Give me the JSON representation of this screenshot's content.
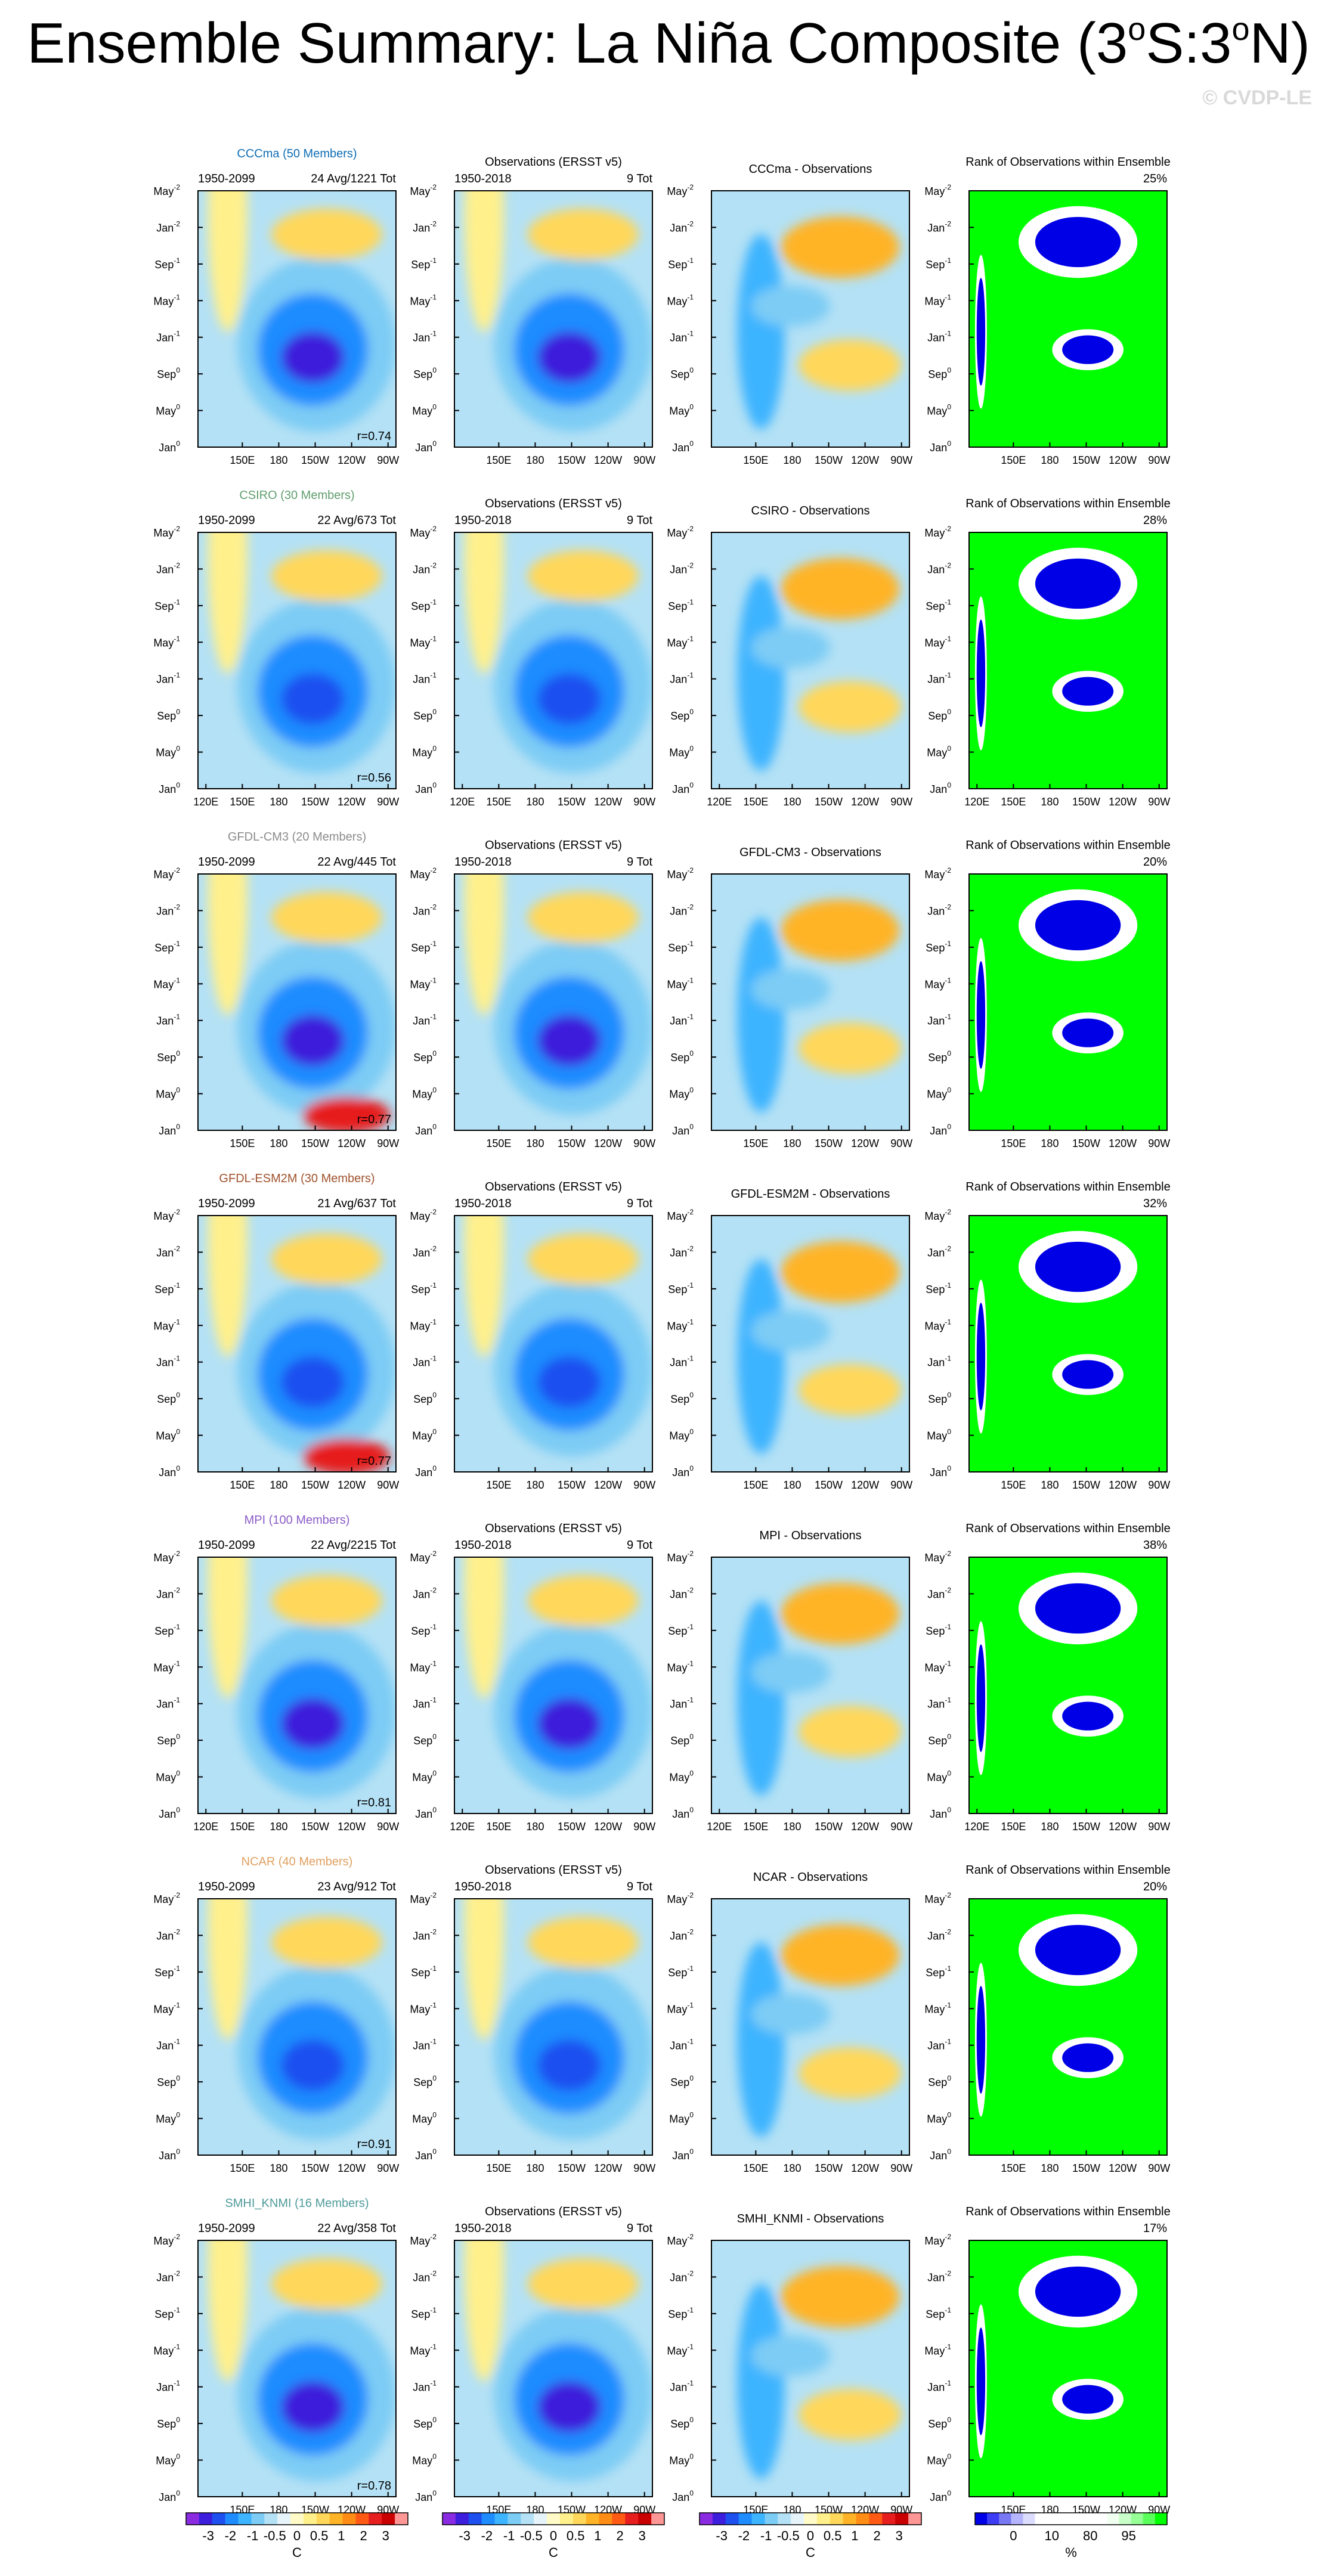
{
  "title": "Ensemble Summary: La Niña Composite (3°S:3°N)",
  "title_parts": {
    "pre": "Ensemble Summary: La Niña Composite (3",
    "deg": "o",
    "mid": "S:3",
    "post": "N)"
  },
  "watermark": "© CVDP-LE",
  "column_headers": {
    "obs": "Observations (ERSST v5)",
    "rank": "Rank of Observations within Ensemble",
    "obs_years": "1950-2018",
    "obs_events": "9 Tot"
  },
  "y_ticks": [
    {
      "base": "May",
      "sup": "-2"
    },
    {
      "base": "Jan",
      "sup": "-2"
    },
    {
      "base": "Sep",
      "sup": "-1"
    },
    {
      "base": "May",
      "sup": "-1"
    },
    {
      "base": "Jan",
      "sup": "-1"
    },
    {
      "base": "Sep",
      "sup": "0"
    },
    {
      "base": "May",
      "sup": "0"
    },
    {
      "base": "Jan",
      "sup": "0"
    }
  ],
  "x_ticks_full": [
    "120E",
    "150E",
    "180",
    "150W",
    "120W",
    "90W"
  ],
  "x_ticks_short": [
    "150E",
    "180",
    "150W",
    "120W",
    "90W"
  ],
  "models": [
    {
      "name": "CCCma",
      "label": "CCCma (50 Members)",
      "color": "#0e6eb5",
      "years": "1950-2099",
      "events": "24 Avg/1221 Tot",
      "diff_title": "CCCma - Observations",
      "rank_pct": "25%",
      "r": "r=0.74",
      "full_xticks": false
    },
    {
      "name": "CSIRO",
      "label": "CSIRO (30 Members)",
      "color": "#5f9e6e",
      "years": "1950-2099",
      "events": "22 Avg/673 Tot",
      "diff_title": "CSIRO - Observations",
      "rank_pct": "28%",
      "r": "r=0.56",
      "full_xticks": true
    },
    {
      "name": "GFDL-CM3",
      "label": "GFDL-CM3 (20 Members)",
      "color": "#8c8c8c",
      "years": "1950-2099",
      "events": "22 Avg/445 Tot",
      "diff_title": "GFDL-CM3 - Observations",
      "rank_pct": "20%",
      "r": "r=0.77",
      "full_xticks": false
    },
    {
      "name": "GFDL-ESM2M",
      "label": "GFDL-ESM2M (30 Members)",
      "color": "#a0522d",
      "years": "1950-2099",
      "events": "21 Avg/637 Tot",
      "diff_title": "GFDL-ESM2M - Observations",
      "rank_pct": "32%",
      "r": "r=0.77",
      "full_xticks": false
    },
    {
      "name": "MPI",
      "label": "MPI (100 Members)",
      "color": "#8b5cc7",
      "years": "1950-2099",
      "events": "22 Avg/2215 Tot",
      "diff_title": "MPI - Observations",
      "rank_pct": "38%",
      "r": "r=0.81",
      "full_xticks": true
    },
    {
      "name": "NCAR",
      "label": "NCAR (40 Members)",
      "color": "#e0a060",
      "years": "1950-2099",
      "events": "23 Avg/912 Tot",
      "diff_title": "NCAR - Observations",
      "rank_pct": "20%",
      "r": "r=0.91",
      "full_xticks": false
    },
    {
      "name": "SMHI_KNMI",
      "label": "SMHI_KNMI (16 Members)",
      "color": "#4f9a9a",
      "years": "1950-2099",
      "events": "22 Avg/358 Tot",
      "diff_title": "SMHI_KNMI - Observations",
      "rank_pct": "17%",
      "r": "r=0.78",
      "full_xticks": false
    }
  ],
  "colorbar_sst": {
    "labels": [
      "-3",
      "-2",
      "-1",
      "-0.5",
      "0",
      "0.5",
      "1",
      "2",
      "3"
    ],
    "unit": "C",
    "colors": [
      "#8a2be2",
      "#3c1edc",
      "#1e50f0",
      "#1e8cff",
      "#3cb4ff",
      "#7dccf5",
      "#b4e1f5",
      "#e6f4fa",
      "#fffac8",
      "#fff08c",
      "#ffd75a",
      "#ffb428",
      "#ff8c14",
      "#ff5a14",
      "#e61e1e",
      "#c80000",
      "#ff9696"
    ]
  },
  "colorbar_rank": {
    "labels": [
      "0",
      "10",
      "80",
      "95"
    ],
    "unit": "%",
    "colors": [
      "#0000e6",
      "#3c3cf5",
      "#7878f5",
      "#b4b4ff",
      "#dcdcff",
      "#ffffff",
      "#ffffff",
      "#ffffff",
      "#ffffff",
      "#ffffff",
      "#ffffff",
      "#f0fff0",
      "#c8ffc8",
      "#96ff96",
      "#5aff5a",
      "#00ff00"
    ]
  },
  "chart_data": {
    "type": "heatmap",
    "title": "Ensemble Summary: La Niña Composite (3°S:3°N)",
    "x_axis": [
      "120E",
      "150E",
      "180",
      "150W",
      "120W",
      "90W"
    ],
    "y_axis": [
      "May⁻²",
      "Jan⁻²",
      "Sep⁻¹",
      "May⁻¹",
      "Jan⁻¹",
      "Sep⁰",
      "May⁰",
      "Jan⁰"
    ],
    "sst_levels_C": [
      -3,
      -2,
      -1,
      -0.5,
      0,
      0.5,
      1,
      2,
      3
    ],
    "rank_levels_pct": [
      0,
      10,
      80,
      95
    ],
    "models": [
      "CCCma",
      "CSIRO",
      "GFDL-CM3",
      "GFDL-ESM2M",
      "MPI",
      "NCAR",
      "SMHI_KNMI"
    ],
    "pattern_correlation": [
      0.74,
      0.56,
      0.77,
      0.77,
      0.81,
      0.91,
      0.78
    ],
    "rank_of_observations_pct": [
      25,
      28,
      20,
      32,
      38,
      20,
      17
    ],
    "observation_events": 9
  }
}
